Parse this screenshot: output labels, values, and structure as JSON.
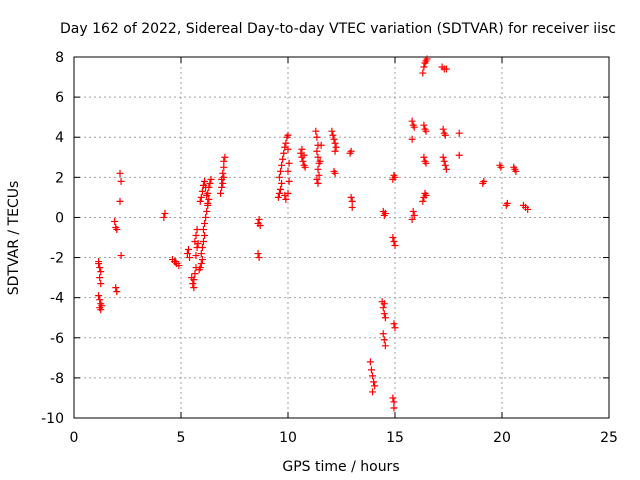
{
  "chart_data": {
    "type": "scatter",
    "title": "Day 162 of 2022, Sidereal Day-to-day VTEC variation (SDTVAR) for receiver iisc",
    "xlabel": "GPS time / hours",
    "ylabel": "SDTVAR / TECUs",
    "xlim": [
      0,
      25
    ],
    "ylim": [
      -10,
      8
    ],
    "xticks": [
      0,
      5,
      10,
      15,
      20,
      25
    ],
    "yticks": [
      -10,
      -8,
      -6,
      -4,
      -2,
      0,
      2,
      4,
      6,
      8
    ],
    "grid": true,
    "marker": "+",
    "marker_color": "#ff0000",
    "series": [
      {
        "name": "SDTVAR",
        "points": [
          [
            1.15,
            -2.3
          ],
          [
            1.2,
            -2.5
          ],
          [
            1.25,
            -2.7
          ],
          [
            1.2,
            -3.0
          ],
          [
            1.25,
            -3.3
          ],
          [
            1.15,
            -3.9
          ],
          [
            1.2,
            -4.1
          ],
          [
            1.25,
            -4.3
          ],
          [
            1.2,
            -4.5
          ],
          [
            1.25,
            -4.6
          ],
          [
            1.15,
            -2.2
          ],
          [
            1.3,
            -4.4
          ],
          [
            1.9,
            -0.2
          ],
          [
            1.95,
            -0.5
          ],
          [
            2.0,
            -0.6
          ],
          [
            1.95,
            -3.5
          ],
          [
            2.0,
            -3.7
          ],
          [
            2.15,
            2.2
          ],
          [
            2.2,
            1.8
          ],
          [
            2.15,
            0.8
          ],
          [
            2.2,
            -1.9
          ],
          [
            4.2,
            0.0
          ],
          [
            4.25,
            0.2
          ],
          [
            4.6,
            -2.1
          ],
          [
            4.7,
            -2.2
          ],
          [
            4.8,
            -2.3
          ],
          [
            4.9,
            -2.4
          ],
          [
            4.75,
            -2.2
          ],
          [
            5.3,
            -1.8
          ],
          [
            5.35,
            -1.6
          ],
          [
            5.4,
            -2.0
          ],
          [
            5.5,
            -3.0
          ],
          [
            5.55,
            -3.3
          ],
          [
            5.6,
            -3.5
          ],
          [
            5.6,
            -3.1
          ],
          [
            5.65,
            -2.8
          ],
          [
            5.7,
            -2.5
          ],
          [
            5.7,
            -1.9
          ],
          [
            5.75,
            -1.5
          ],
          [
            5.65,
            -1.2
          ],
          [
            5.7,
            -0.9
          ],
          [
            5.75,
            -0.6
          ],
          [
            5.8,
            -1.3
          ],
          [
            5.85,
            -2.6
          ],
          [
            5.9,
            -2.5
          ],
          [
            5.95,
            -2.3
          ],
          [
            6.0,
            -2.1
          ],
          [
            5.95,
            -1.8
          ],
          [
            6.0,
            -1.5
          ],
          [
            6.05,
            -1.2
          ],
          [
            6.1,
            -0.9
          ],
          [
            6.05,
            -0.6
          ],
          [
            6.1,
            -0.3
          ],
          [
            6.15,
            0.0
          ],
          [
            6.2,
            0.3
          ],
          [
            6.25,
            0.6
          ],
          [
            6.3,
            0.9
          ],
          [
            6.25,
            1.2
          ],
          [
            6.3,
            1.5
          ],
          [
            6.35,
            1.7
          ],
          [
            6.4,
            1.9
          ],
          [
            5.9,
            0.8
          ],
          [
            5.95,
            1.0
          ],
          [
            6.0,
            1.3
          ],
          [
            6.05,
            1.6
          ],
          [
            6.1,
            1.8
          ],
          [
            6.15,
            1.5
          ],
          [
            6.2,
            1.1
          ],
          [
            6.25,
            0.7
          ],
          [
            6.85,
            1.2
          ],
          [
            6.9,
            1.5
          ],
          [
            6.9,
            1.9
          ],
          [
            6.95,
            2.2
          ],
          [
            7.0,
            2.5
          ],
          [
            7.0,
            2.8
          ],
          [
            7.05,
            3.0
          ],
          [
            6.95,
            1.7
          ],
          [
            7.0,
            2.0
          ],
          [
            8.6,
            -0.3
          ],
          [
            8.65,
            -0.1
          ],
          [
            8.7,
            -0.4
          ],
          [
            8.6,
            -1.8
          ],
          [
            8.65,
            -2.0
          ],
          [
            9.55,
            1.0
          ],
          [
            9.6,
            1.2
          ],
          [
            9.65,
            1.4
          ],
          [
            9.7,
            1.7
          ],
          [
            9.6,
            2.0
          ],
          [
            9.65,
            2.3
          ],
          [
            9.7,
            2.6
          ],
          [
            9.75,
            2.9
          ],
          [
            9.8,
            3.2
          ],
          [
            9.85,
            3.5
          ],
          [
            9.9,
            3.7
          ],
          [
            9.95,
            4.0
          ],
          [
            10.0,
            4.1
          ],
          [
            9.85,
            1.1
          ],
          [
            9.9,
            0.9
          ],
          [
            10.0,
            1.2
          ],
          [
            10.05,
            1.8
          ],
          [
            10.0,
            2.3
          ],
          [
            10.05,
            2.7
          ],
          [
            10.0,
            3.4
          ],
          [
            10.6,
            3.2
          ],
          [
            10.65,
            3.0
          ],
          [
            10.7,
            2.8
          ],
          [
            10.75,
            2.6
          ],
          [
            10.8,
            2.5
          ],
          [
            10.65,
            3.4
          ],
          [
            10.75,
            3.1
          ],
          [
            11.3,
            4.3
          ],
          [
            11.35,
            4.0
          ],
          [
            11.4,
            3.6
          ],
          [
            11.35,
            3.3
          ],
          [
            11.4,
            3.0
          ],
          [
            11.45,
            2.7
          ],
          [
            11.4,
            2.4
          ],
          [
            11.45,
            2.1
          ],
          [
            11.35,
            1.9
          ],
          [
            11.4,
            1.7
          ],
          [
            11.5,
            2.8
          ],
          [
            11.55,
            3.6
          ],
          [
            12.05,
            4.3
          ],
          [
            12.1,
            4.1
          ],
          [
            12.15,
            3.9
          ],
          [
            12.2,
            3.7
          ],
          [
            12.25,
            3.5
          ],
          [
            12.2,
            3.3
          ],
          [
            12.15,
            2.3
          ],
          [
            12.2,
            2.2
          ],
          [
            12.9,
            3.2
          ],
          [
            12.95,
            3.3
          ],
          [
            12.95,
            1.0
          ],
          [
            13.0,
            0.8
          ],
          [
            13.0,
            0.5
          ],
          [
            13.85,
            -7.2
          ],
          [
            13.9,
            -7.6
          ],
          [
            13.95,
            -7.9
          ],
          [
            14.0,
            -8.2
          ],
          [
            14.05,
            -8.4
          ],
          [
            13.95,
            -8.7
          ],
          [
            14.45,
            0.3
          ],
          [
            14.5,
            0.1
          ],
          [
            14.55,
            0.2
          ],
          [
            14.4,
            -4.2
          ],
          [
            14.45,
            -4.5
          ],
          [
            14.5,
            -4.8
          ],
          [
            14.55,
            -5.0
          ],
          [
            14.45,
            -5.8
          ],
          [
            14.5,
            -6.1
          ],
          [
            14.55,
            -6.4
          ],
          [
            14.5,
            -4.3
          ],
          [
            14.9,
            1.9
          ],
          [
            14.95,
            2.1
          ],
          [
            15.0,
            2.0
          ],
          [
            14.9,
            -1.0
          ],
          [
            14.95,
            -1.2
          ],
          [
            15.0,
            -1.4
          ],
          [
            14.95,
            -5.3
          ],
          [
            15.0,
            -5.5
          ],
          [
            14.9,
            -9.0
          ],
          [
            14.95,
            -9.2
          ],
          [
            14.95,
            -9.5
          ],
          [
            15.8,
            4.8
          ],
          [
            15.85,
            4.6
          ],
          [
            15.9,
            4.5
          ],
          [
            15.8,
            3.9
          ],
          [
            15.85,
            0.3
          ],
          [
            15.9,
            0.1
          ],
          [
            15.8,
            -0.1
          ],
          [
            16.3,
            7.2
          ],
          [
            16.35,
            7.5
          ],
          [
            16.4,
            7.7
          ],
          [
            16.45,
            7.8
          ],
          [
            16.5,
            7.9
          ],
          [
            16.35,
            4.6
          ],
          [
            16.4,
            4.4
          ],
          [
            16.45,
            4.3
          ],
          [
            16.35,
            3.0
          ],
          [
            16.4,
            2.8
          ],
          [
            16.45,
            2.7
          ],
          [
            16.3,
            0.8
          ],
          [
            16.35,
            1.0
          ],
          [
            16.4,
            1.2
          ],
          [
            16.45,
            1.1
          ],
          [
            17.2,
            7.5
          ],
          [
            17.3,
            7.4
          ],
          [
            17.4,
            7.4
          ],
          [
            17.25,
            4.4
          ],
          [
            17.3,
            4.2
          ],
          [
            17.35,
            4.1
          ],
          [
            17.25,
            3.0
          ],
          [
            17.3,
            2.8
          ],
          [
            17.35,
            2.6
          ],
          [
            17.4,
            2.4
          ],
          [
            18.0,
            4.2
          ],
          [
            18.0,
            3.1
          ],
          [
            19.1,
            1.7
          ],
          [
            19.15,
            1.8
          ],
          [
            19.9,
            2.6
          ],
          [
            19.95,
            2.5
          ],
          [
            20.2,
            0.6
          ],
          [
            20.25,
            0.7
          ],
          [
            20.55,
            2.5
          ],
          [
            20.6,
            2.4
          ],
          [
            20.65,
            2.3
          ],
          [
            21.0,
            0.6
          ],
          [
            21.1,
            0.5
          ],
          [
            21.2,
            0.4
          ]
        ]
      }
    ]
  }
}
